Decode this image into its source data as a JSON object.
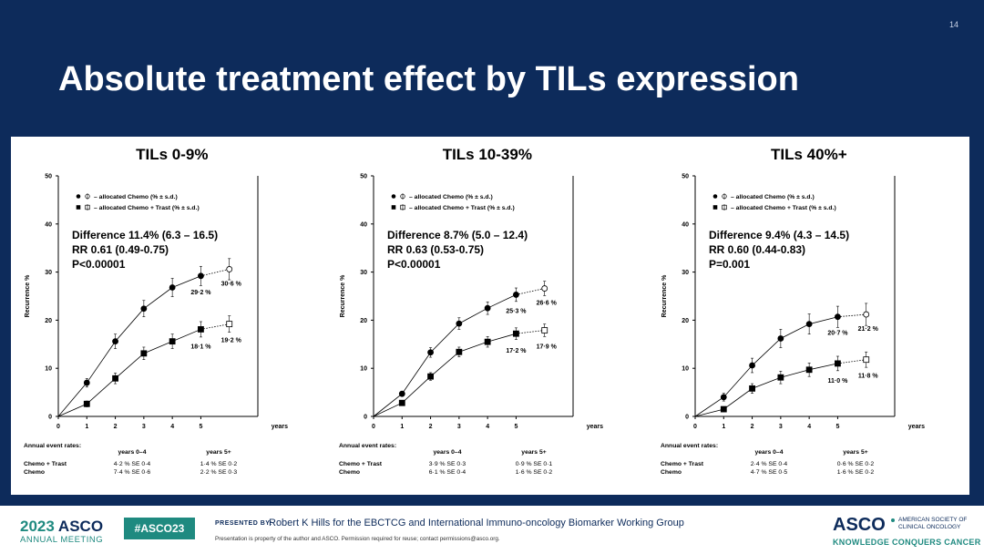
{
  "slide": {
    "number": "14",
    "title": "Absolute treatment effect by TILs expression"
  },
  "chart_data": [
    {
      "type": "line",
      "title": "TILs 0-9%",
      "ylabel": "Recurrence %",
      "xlabel": "years",
      "ylim": [
        0,
        50
      ],
      "xlim": [
        0,
        7
      ],
      "yticks": [
        "0",
        "10",
        "20",
        "30",
        "40",
        "50"
      ],
      "xticks": [
        "0",
        "1",
        "2",
        "3",
        "4",
        "5"
      ],
      "legend": [
        "– allocated Chemo (% ± s.d.)",
        "– allocated Chemo + Trast (% ± s.d.)"
      ],
      "stats": [
        "Difference 11.4% (6.3 – 16.5)",
        "RR 0.61 (0.49-0.75)",
        "P<0.00001"
      ],
      "series": [
        {
          "name": "allocated Chemo",
          "x": [
            0,
            1,
            2,
            3,
            4,
            5,
            6
          ],
          "y": [
            0,
            7.0,
            15.6,
            22.4,
            26.8,
            29.2,
            30.6
          ],
          "sd": [
            0,
            0.9,
            1.5,
            1.7,
            1.9,
            2.0,
            2.2
          ],
          "end_labels": [
            "29·2 %",
            "30·6 %"
          ]
        },
        {
          "name": "allocated Chemo + Trast",
          "x": [
            0,
            1,
            2,
            3,
            4,
            5,
            6
          ],
          "y": [
            0,
            2.6,
            7.9,
            13.1,
            15.6,
            18.1,
            19.2
          ],
          "sd": [
            0,
            0.6,
            1.1,
            1.3,
            1.5,
            1.6,
            1.7
          ],
          "end_labels": [
            "18·1 %",
            "19·2 %"
          ]
        }
      ],
      "annual_rates": {
        "heading": "Annual event rates:",
        "col_heads": [
          "years 0–4",
          "years 5+"
        ],
        "rows": [
          {
            "label": "Chemo + Trast",
            "early": "4·2 % SE 0·4",
            "late": "1·4 % SE 0·2"
          },
          {
            "label": "Chemo",
            "early": "7·4 % SE 0·6",
            "late": "2·2 % SE 0·3"
          }
        ]
      }
    },
    {
      "type": "line",
      "title": "TILs 10-39%",
      "ylabel": "Recurrence %",
      "xlabel": "years",
      "ylim": [
        0,
        50
      ],
      "xlim": [
        0,
        7
      ],
      "yticks": [
        "0",
        "10",
        "20",
        "30",
        "40",
        "50"
      ],
      "xticks": [
        "0",
        "1",
        "2",
        "3",
        "4",
        "5"
      ],
      "legend": [
        "– allocated Chemo (% ± s.d.)",
        "– allocated Chemo + Trast (% ± s.d.)"
      ],
      "stats": [
        "Difference 8.7% (5.0 – 12.4)",
        "RR 0.63 (0.53-0.75)",
        "P<0.00001"
      ],
      "series": [
        {
          "name": "allocated Chemo",
          "x": [
            0,
            1,
            2,
            3,
            4,
            5,
            6
          ],
          "y": [
            0,
            4.7,
            13.3,
            19.3,
            22.5,
            25.3,
            26.6
          ],
          "sd": [
            0,
            0.5,
            1.0,
            1.2,
            1.3,
            1.4,
            1.5
          ],
          "end_labels": [
            "25·3 %",
            "26·6 %"
          ]
        },
        {
          "name": "allocated Chemo + Trast",
          "x": [
            0,
            1,
            2,
            3,
            4,
            5,
            6
          ],
          "y": [
            0,
            2.8,
            8.3,
            13.4,
            15.5,
            17.2,
            17.9
          ],
          "sd": [
            0,
            0.4,
            0.8,
            1.0,
            1.1,
            1.2,
            1.3
          ],
          "end_labels": [
            "17·2 %",
            "17·9 %"
          ]
        }
      ],
      "annual_rates": {
        "heading": "Annual event rates:",
        "col_heads": [
          "years 0–4",
          "years 5+"
        ],
        "rows": [
          {
            "label": "Chemo + Trast",
            "early": "3·9 % SE 0·3",
            "late": "0·9 % SE 0·1"
          },
          {
            "label": "Chemo",
            "early": "6·1 % SE 0·4",
            "late": "1·6 % SE 0·2"
          }
        ]
      }
    },
    {
      "type": "line",
      "title": "TILs 40%+",
      "ylabel": "Recurrence %",
      "xlabel": "years",
      "ylim": [
        0,
        50
      ],
      "xlim": [
        0,
        7
      ],
      "yticks": [
        "0",
        "10",
        "20",
        "30",
        "40",
        "50"
      ],
      "xticks": [
        "0",
        "1",
        "2",
        "3",
        "4",
        "5"
      ],
      "legend": [
        "– allocated Chemo (% ± s.d.)",
        "– allocated Chemo + Trast (% ± s.d.)"
      ],
      "stats": [
        "Difference 9.4% (4.3 – 14.5)",
        "RR 0.60 (0.44-0.83)",
        "P=0.001"
      ],
      "series": [
        {
          "name": "allocated Chemo",
          "x": [
            0,
            1,
            2,
            3,
            4,
            5,
            6
          ],
          "y": [
            0,
            4.0,
            10.6,
            16.2,
            19.2,
            20.7,
            21.2
          ],
          "sd": [
            0,
            0.8,
            1.5,
            1.9,
            2.1,
            2.2,
            2.3
          ],
          "end_labels": [
            "20·7 %",
            "21·2 %"
          ]
        },
        {
          "name": "allocated Chemo + Trast",
          "x": [
            0,
            1,
            2,
            3,
            4,
            5,
            6
          ],
          "y": [
            0,
            1.5,
            5.8,
            8.1,
            9.7,
            11.0,
            11.8
          ],
          "sd": [
            0,
            0.5,
            1.0,
            1.3,
            1.4,
            1.5,
            1.6
          ],
          "end_labels": [
            "11·0 %",
            "11·8 %"
          ]
        }
      ],
      "annual_rates": {
        "heading": "Annual event rates:",
        "col_heads": [
          "years 0–4",
          "years 5+"
        ],
        "rows": [
          {
            "label": "Chemo + Trast",
            "early": "2·4 % SE 0·4",
            "late": "0·6 % SE 0·2"
          },
          {
            "label": "Chemo",
            "early": "4·7 % SE 0·5",
            "late": "1·6 % SE 0·2"
          }
        ]
      }
    }
  ],
  "footer": {
    "year": "2023",
    "asco": "ASCO",
    "meeting": "ANNUAL MEETING",
    "hashtag": "#ASCO23",
    "presented_by": "PRESENTED BY:",
    "presenter": "Robert K Hills  for the EBCTCG and International Immuno-oncology  Biomarker Working Group",
    "permission": "Presentation is property of the author and ASCO. Permission required for reuse; contact permissions@asco.org.",
    "logo": "ASCO",
    "society_line1": "AMERICAN SOCIETY OF",
    "society_line2": "CLINICAL ONCOLOGY",
    "tagline": "KNOWLEDGE CONQUERS CANCER"
  },
  "colors": {
    "navy": "#0d2b5b",
    "teal": "#1f8a80"
  }
}
